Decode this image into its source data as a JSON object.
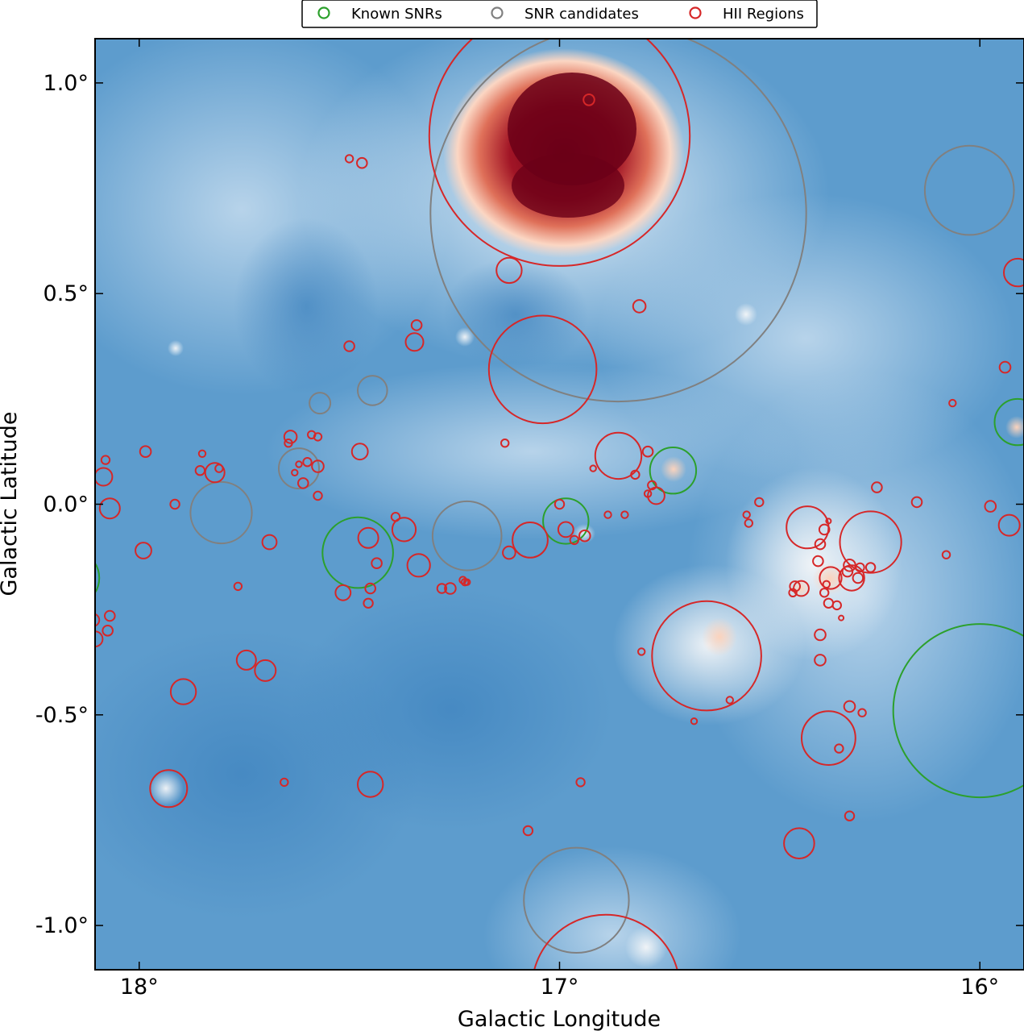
{
  "chart_data": {
    "type": "scatter",
    "title": "",
    "xlabel": "Galactic Longitude",
    "ylabel": "Galactic Latitude",
    "xlim": [
      18.105,
      15.895
    ],
    "ylim": [
      -1.105,
      1.105
    ],
    "x_ticks": [
      {
        "value": 18,
        "label": "18°"
      },
      {
        "value": 17,
        "label": "17°"
      },
      {
        "value": 16,
        "label": "16°"
      }
    ],
    "y_ticks": [
      {
        "value": 1,
        "label": "1.0°"
      },
      {
        "value": 0.5,
        "label": "0.5°"
      },
      {
        "value": 0,
        "label": "0.0°"
      },
      {
        "value": -0.5,
        "label": "-0.5°"
      },
      {
        "value": -1,
        "label": "-1.0°"
      }
    ],
    "legend_position": "top-center",
    "colors": {
      "known_snr": "#2ca02c",
      "snr_candidate": "#808080",
      "hii": "#d62728"
    },
    "series": [
      {
        "name": "Known SNRs",
        "color": "#2ca02c",
        "points": [
          {
            "l": 16.985,
            "b": -0.04,
            "r": 0.054
          },
          {
            "l": 16.73,
            "b": 0.08,
            "r": 0.055
          },
          {
            "l": 17.48,
            "b": -0.115,
            "r": 0.084
          },
          {
            "l": 16.0,
            "b": -0.49,
            "r": 0.206
          },
          {
            "l": 15.91,
            "b": 0.195,
            "r": 0.055
          },
          {
            "l": 18.16,
            "b": -0.175,
            "r": 0.065
          }
        ]
      },
      {
        "name": "SNR candidates",
        "color": "#808080",
        "points": [
          {
            "l": 16.86,
            "b": 0.69,
            "r": 0.447
          },
          {
            "l": 16.025,
            "b": 0.745,
            "r": 0.106
          },
          {
            "l": 16.96,
            "b": -0.94,
            "r": 0.125
          },
          {
            "l": 17.22,
            "b": -0.075,
            "r": 0.082
          },
          {
            "l": 17.805,
            "b": -0.02,
            "r": 0.073
          },
          {
            "l": 17.62,
            "b": 0.085,
            "r": 0.048
          },
          {
            "l": 17.57,
            "b": 0.24,
            "r": 0.025
          },
          {
            "l": 17.445,
            "b": 0.27,
            "r": 0.035
          }
        ]
      },
      {
        "name": "HII Regions",
        "color": "#d62728",
        "points": [
          {
            "l": 17.0,
            "b": 0.875,
            "r": 0.31
          },
          {
            "l": 16.93,
            "b": 0.96,
            "r": 0.013
          },
          {
            "l": 17.04,
            "b": 0.32,
            "r": 0.128
          },
          {
            "l": 17.12,
            "b": 0.555,
            "r": 0.03
          },
          {
            "l": 16.81,
            "b": 0.47,
            "r": 0.015
          },
          {
            "l": 17.345,
            "b": 0.385,
            "r": 0.021
          },
          {
            "l": 17.34,
            "b": 0.425,
            "r": 0.012
          },
          {
            "l": 17.5,
            "b": 0.375,
            "r": 0.012
          },
          {
            "l": 17.47,
            "b": 0.81,
            "r": 0.012
          },
          {
            "l": 17.5,
            "b": 0.82,
            "r": 0.009
          },
          {
            "l": 16.86,
            "b": 0.115,
            "r": 0.055
          },
          {
            "l": 16.79,
            "b": 0.125,
            "r": 0.012
          },
          {
            "l": 17.13,
            "b": 0.145,
            "r": 0.009
          },
          {
            "l": 16.92,
            "b": 0.085,
            "r": 0.007
          },
          {
            "l": 16.82,
            "b": 0.07,
            "r": 0.01
          },
          {
            "l": 16.78,
            "b": 0.045,
            "r": 0.01
          },
          {
            "l": 16.77,
            "b": 0.02,
            "r": 0.02
          },
          {
            "l": 16.79,
            "b": 0.025,
            "r": 0.008
          },
          {
            "l": 16.885,
            "b": -0.025,
            "r": 0.008
          },
          {
            "l": 17.07,
            "b": -0.085,
            "r": 0.042
          },
          {
            "l": 17.12,
            "b": -0.115,
            "r": 0.015
          },
          {
            "l": 16.985,
            "b": -0.06,
            "r": 0.018
          },
          {
            "l": 17.0,
            "b": 0.0,
            "r": 0.011
          },
          {
            "l": 16.965,
            "b": -0.085,
            "r": 0.01
          },
          {
            "l": 16.94,
            "b": -0.075,
            "r": 0.013
          },
          {
            "l": 17.37,
            "b": -0.06,
            "r": 0.028
          },
          {
            "l": 17.39,
            "b": -0.03,
            "r": 0.01
          },
          {
            "l": 17.335,
            "b": -0.145,
            "r": 0.027
          },
          {
            "l": 17.28,
            "b": -0.2,
            "r": 0.011
          },
          {
            "l": 17.23,
            "b": -0.18,
            "r": 0.008
          },
          {
            "l": 17.22,
            "b": -0.185,
            "r": 0.007
          },
          {
            "l": 17.455,
            "b": -0.08,
            "r": 0.024
          },
          {
            "l": 17.435,
            "b": -0.14,
            "r": 0.012
          },
          {
            "l": 17.45,
            "b": -0.2,
            "r": 0.012
          },
          {
            "l": 17.455,
            "b": -0.235,
            "r": 0.011
          },
          {
            "l": 17.515,
            "b": -0.21,
            "r": 0.018
          },
          {
            "l": 17.475,
            "b": 0.125,
            "r": 0.019
          },
          {
            "l": 17.575,
            "b": 0.16,
            "r": 0.009
          },
          {
            "l": 17.59,
            "b": 0.165,
            "r": 0.009
          },
          {
            "l": 17.6,
            "b": 0.1,
            "r": 0.01
          },
          {
            "l": 17.64,
            "b": 0.16,
            "r": 0.015
          },
          {
            "l": 17.645,
            "b": 0.145,
            "r": 0.009
          },
          {
            "l": 17.575,
            "b": 0.02,
            "r": 0.01
          },
          {
            "l": 17.575,
            "b": 0.09,
            "r": 0.014
          },
          {
            "l": 17.62,
            "b": 0.095,
            "r": 0.007
          },
          {
            "l": 17.63,
            "b": 0.075,
            "r": 0.007
          },
          {
            "l": 17.61,
            "b": 0.05,
            "r": 0.012
          },
          {
            "l": 17.69,
            "b": -0.09,
            "r": 0.017
          },
          {
            "l": 17.82,
            "b": 0.075,
            "r": 0.023
          },
          {
            "l": 17.81,
            "b": 0.085,
            "r": 0.009
          },
          {
            "l": 17.85,
            "b": 0.12,
            "r": 0.008
          },
          {
            "l": 17.855,
            "b": 0.08,
            "r": 0.011
          },
          {
            "l": 17.915,
            "b": 0.0,
            "r": 0.011
          },
          {
            "l": 17.985,
            "b": 0.125,
            "r": 0.013
          },
          {
            "l": 18.08,
            "b": 0.105,
            "r": 0.01
          },
          {
            "l": 18.085,
            "b": 0.065,
            "r": 0.021
          },
          {
            "l": 18.07,
            "b": -0.01,
            "r": 0.024
          },
          {
            "l": 17.99,
            "b": -0.11,
            "r": 0.019
          },
          {
            "l": 17.765,
            "b": -0.195,
            "r": 0.009
          },
          {
            "l": 17.745,
            "b": -0.37,
            "r": 0.023
          },
          {
            "l": 17.7,
            "b": -0.395,
            "r": 0.025
          },
          {
            "l": 17.895,
            "b": -0.445,
            "r": 0.03
          },
          {
            "l": 18.07,
            "b": -0.265,
            "r": 0.012
          },
          {
            "l": 18.075,
            "b": -0.3,
            "r": 0.012
          },
          {
            "l": 18.11,
            "b": -0.275,
            "r": 0.015
          },
          {
            "l": 18.105,
            "b": -0.32,
            "r": 0.018
          },
          {
            "l": 17.93,
            "b": -0.675,
            "r": 0.044
          },
          {
            "l": 17.655,
            "b": -0.66,
            "r": 0.009
          },
          {
            "l": 17.45,
            "b": -0.665,
            "r": 0.03
          },
          {
            "l": 17.26,
            "b": -0.2,
            "r": 0.013
          },
          {
            "l": 17.225,
            "b": -0.185,
            "r": 0.008
          },
          {
            "l": 16.95,
            "b": -0.66,
            "r": 0.01
          },
          {
            "l": 17.075,
            "b": -0.775,
            "r": 0.011
          },
          {
            "l": 16.65,
            "b": -0.36,
            "r": 0.13
          },
          {
            "l": 16.805,
            "b": -0.35,
            "r": 0.008
          },
          {
            "l": 16.595,
            "b": -0.465,
            "r": 0.008
          },
          {
            "l": 16.68,
            "b": -0.515,
            "r": 0.007
          },
          {
            "l": 16.845,
            "b": -0.025,
            "r": 0.008
          },
          {
            "l": 16.55,
            "b": -0.045,
            "r": 0.009
          },
          {
            "l": 16.555,
            "b": -0.025,
            "r": 0.008
          },
          {
            "l": 16.525,
            "b": 0.005,
            "r": 0.01
          },
          {
            "l": 16.44,
            "b": -0.195,
            "r": 0.012
          },
          {
            "l": 16.445,
            "b": -0.21,
            "r": 0.009
          },
          {
            "l": 16.425,
            "b": -0.2,
            "r": 0.018
          },
          {
            "l": 16.43,
            "b": -0.805,
            "r": 0.036
          },
          {
            "l": 16.41,
            "b": -0.055,
            "r": 0.05
          },
          {
            "l": 16.385,
            "b": -0.135,
            "r": 0.012
          },
          {
            "l": 16.38,
            "b": -0.095,
            "r": 0.012
          },
          {
            "l": 16.37,
            "b": -0.06,
            "r": 0.012
          },
          {
            "l": 16.36,
            "b": -0.04,
            "r": 0.005
          },
          {
            "l": 16.37,
            "b": -0.21,
            "r": 0.01
          },
          {
            "l": 16.365,
            "b": -0.19,
            "r": 0.008
          },
          {
            "l": 16.36,
            "b": -0.235,
            "r": 0.011
          },
          {
            "l": 16.355,
            "b": -0.175,
            "r": 0.026
          },
          {
            "l": 16.38,
            "b": -0.31,
            "r": 0.013
          },
          {
            "l": 16.38,
            "b": -0.37,
            "r": 0.013
          },
          {
            "l": 16.34,
            "b": -0.24,
            "r": 0.01
          },
          {
            "l": 16.33,
            "b": -0.27,
            "r": 0.005
          },
          {
            "l": 16.305,
            "b": -0.175,
            "r": 0.03
          },
          {
            "l": 16.315,
            "b": -0.16,
            "r": 0.012
          },
          {
            "l": 16.31,
            "b": -0.145,
            "r": 0.014
          },
          {
            "l": 16.29,
            "b": -0.175,
            "r": 0.012
          },
          {
            "l": 16.285,
            "b": -0.15,
            "r": 0.01
          },
          {
            "l": 16.26,
            "b": -0.15,
            "r": 0.011
          },
          {
            "l": 16.26,
            "b": -0.09,
            "r": 0.073
          },
          {
            "l": 16.245,
            "b": 0.04,
            "r": 0.012
          },
          {
            "l": 16.15,
            "b": 0.005,
            "r": 0.012
          },
          {
            "l": 16.08,
            "b": -0.12,
            "r": 0.009
          },
          {
            "l": 16.36,
            "b": -0.555,
            "r": 0.064
          },
          {
            "l": 16.335,
            "b": -0.58,
            "r": 0.01
          },
          {
            "l": 16.31,
            "b": -0.48,
            "r": 0.013
          },
          {
            "l": 16.28,
            "b": -0.495,
            "r": 0.009
          },
          {
            "l": 16.31,
            "b": -0.74,
            "r": 0.011
          },
          {
            "l": 16.065,
            "b": 0.24,
            "r": 0.008
          },
          {
            "l": 15.94,
            "b": 0.325,
            "r": 0.013
          },
          {
            "l": 15.91,
            "b": 0.55,
            "r": 0.033
          },
          {
            "l": 15.975,
            "b": -0.005,
            "r": 0.013
          },
          {
            "l": 15.93,
            "b": -0.05,
            "r": 0.025
          },
          {
            "l": 16.89,
            "b": -1.15,
            "r": 0.176
          }
        ]
      }
    ]
  }
}
